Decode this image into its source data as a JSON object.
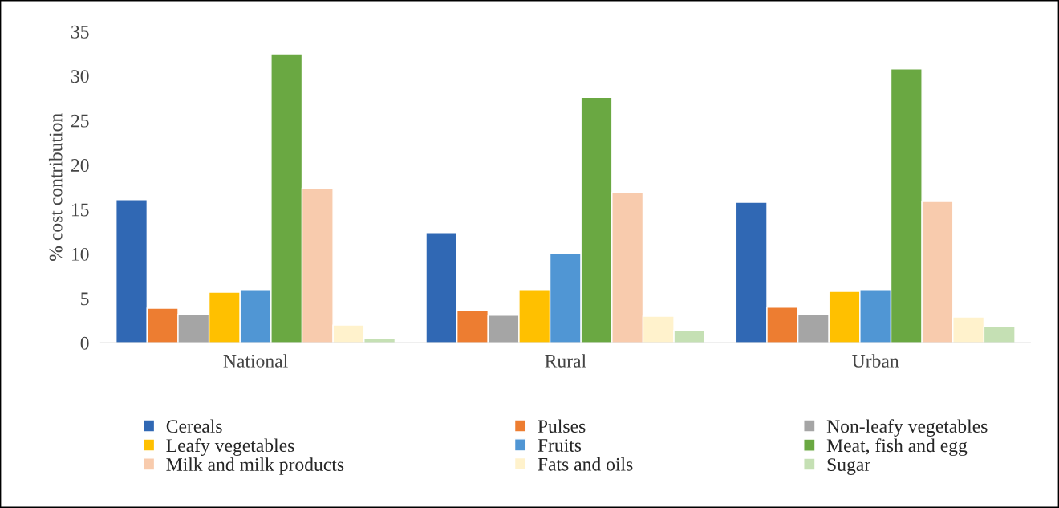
{
  "chart_data": {
    "type": "bar",
    "ylabel": "% cost contribution",
    "categories": [
      "National",
      "Rural",
      "Urban"
    ],
    "series": [
      {
        "name": "Cereals",
        "color": "#3068b4",
        "values": [
          16.1,
          12.4,
          15.8
        ]
      },
      {
        "name": "Pulses",
        "color": "#ed7d31",
        "values": [
          3.9,
          3.7,
          4.0
        ]
      },
      {
        "name": "Non-leafy vegetables",
        "color": "#a5a5a5",
        "values": [
          3.2,
          3.1,
          3.2
        ]
      },
      {
        "name": "Leafy vegetables",
        "color": "#ffc000",
        "values": [
          5.7,
          6.0,
          5.8
        ]
      },
      {
        "name": "Fruits",
        "color": "#5096d4",
        "values": [
          6.0,
          10.0,
          6.0
        ]
      },
      {
        "name": "Meat, fish and egg",
        "color": "#6aa842",
        "values": [
          32.5,
          27.6,
          30.8
        ]
      },
      {
        "name": "Milk and milk products",
        "color": "#f8cbad",
        "values": [
          17.4,
          16.9,
          15.9
        ]
      },
      {
        "name": "Fats and oils",
        "color": "#fff2cc",
        "values": [
          2.0,
          3.0,
          2.9
        ]
      },
      {
        "name": "Sugar",
        "color": "#c5e0b4",
        "values": [
          0.5,
          1.4,
          1.8
        ]
      }
    ],
    "ylim": [
      0,
      35
    ],
    "yticks": [
      0,
      5,
      10,
      15,
      20,
      25,
      30,
      35
    ],
    "grid": false,
    "legend": "bottom"
  }
}
